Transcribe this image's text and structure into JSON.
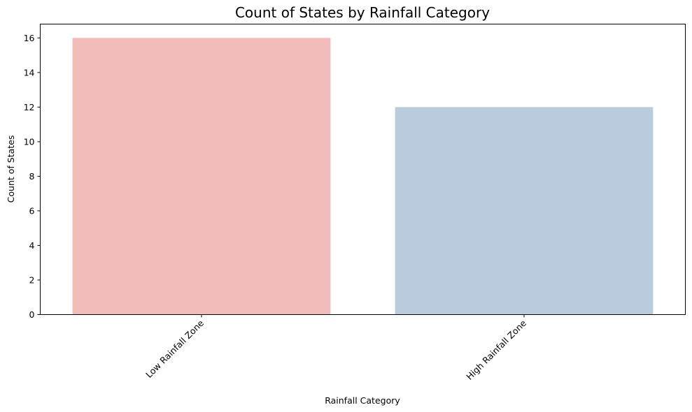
{
  "chart_data": {
    "type": "bar",
    "title": "Count of States by Rainfall Category",
    "xlabel": "Rainfall Category",
    "ylabel": "Count of States",
    "categories": [
      "Low Rainfall Zone",
      "High Rainfall Zone"
    ],
    "values": [
      16,
      12
    ],
    "colors": [
      "#f1bbb9",
      "#b9ccde"
    ],
    "ylim": [
      0,
      16.8
    ],
    "yticks": [
      0,
      2,
      4,
      6,
      8,
      10,
      12,
      14,
      16
    ],
    "xtick_rotation": 45,
    "grid": false,
    "legend": "none"
  }
}
